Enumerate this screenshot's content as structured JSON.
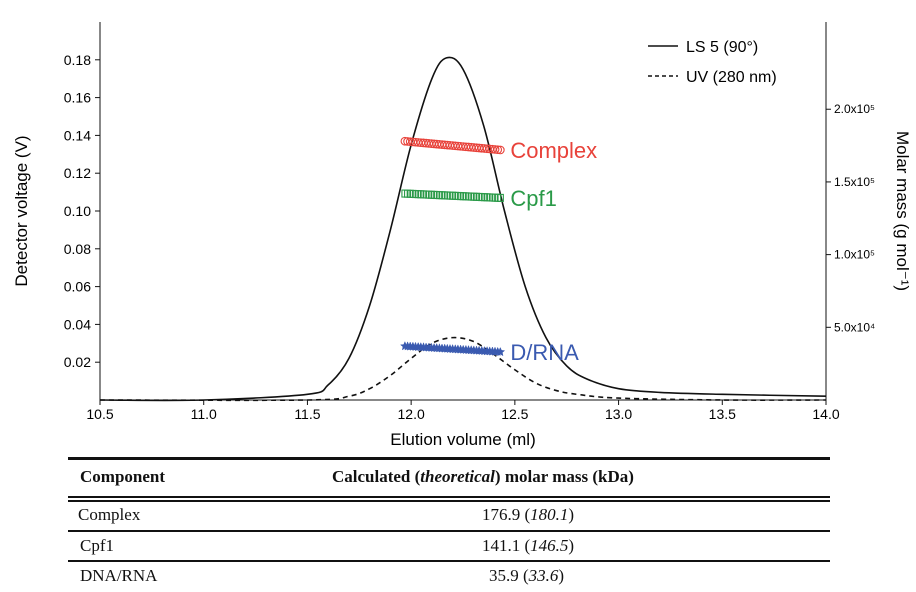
{
  "chart_data": {
    "type": "line",
    "xlabel": "Elution volume (ml)",
    "ylabel": "Detector voltage (V)",
    "y2label": "Molar mass (g mol⁻¹)",
    "xlim": [
      10.5,
      14.0
    ],
    "ylim": [
      0,
      0.2
    ],
    "y2lim": [
      0,
      260000
    ],
    "xticks": [
      "10.5",
      "11.0",
      "11.5",
      "12.0",
      "12.5",
      "13.0",
      "13.5",
      "14.0"
    ],
    "yticks": [
      "0.02",
      "0.04",
      "0.06",
      "0.08",
      "0.10",
      "0.12",
      "0.14",
      "0.16",
      "0.18"
    ],
    "y2ticks": [
      "5.0x10⁴",
      "1.0x10⁵",
      "1.5x10⁵",
      "2.0x10⁵"
    ],
    "legend": {
      "position": "top-right",
      "entries": [
        "LS 5 (90°)",
        "UV (280 nm)"
      ]
    },
    "series": [
      {
        "name": "LS 5 (90°)",
        "style": "solid",
        "color": "#111111",
        "x": [
          10.5,
          11.0,
          11.5,
          11.6,
          11.7,
          11.8,
          11.9,
          12.0,
          12.1,
          12.17,
          12.25,
          12.35,
          12.45,
          12.55,
          12.65,
          12.75,
          12.85,
          13.0,
          13.2,
          13.5,
          14.0
        ],
        "y": [
          0.0,
          0.0,
          0.003,
          0.008,
          0.022,
          0.05,
          0.09,
          0.135,
          0.17,
          0.181,
          0.175,
          0.145,
          0.1,
          0.06,
          0.033,
          0.018,
          0.011,
          0.006,
          0.004,
          0.003,
          0.002
        ]
      },
      {
        "name": "UV (280 nm)",
        "style": "dashed",
        "color": "#111111",
        "x": [
          10.5,
          11.5,
          11.7,
          11.8,
          11.9,
          12.0,
          12.1,
          12.2,
          12.3,
          12.4,
          12.5,
          12.6,
          12.7,
          12.8,
          13.0,
          13.5,
          14.0
        ],
        "y": [
          0.0,
          0.0,
          0.002,
          0.006,
          0.013,
          0.022,
          0.03,
          0.033,
          0.031,
          0.024,
          0.016,
          0.009,
          0.005,
          0.003,
          0.001,
          0.0,
          0.0
        ]
      }
    ],
    "mass_series": [
      {
        "label": "Complex",
        "color": "#e8423a",
        "marker": "circle",
        "x": [
          11.97,
          12.43
        ],
        "y": [
          178000,
          172000
        ]
      },
      {
        "label": "Cpf1",
        "color": "#2a9a48",
        "marker": "square",
        "x": [
          11.97,
          12.43
        ],
        "y": [
          142000,
          139000
        ]
      },
      {
        "label": "D/RNA",
        "color": "#3a5ab0",
        "marker": "star",
        "x": [
          11.97,
          12.43
        ],
        "y": [
          37000,
          33000
        ]
      }
    ]
  },
  "table": {
    "header_component": "Component",
    "header_mass_pre": "Calculated (",
    "header_mass_italic": "theoretical",
    "header_mass_post": ") molar mass (kDa)",
    "rows": [
      {
        "component": "Complex",
        "calculated": "176.9",
        "theoretical": "180.1"
      },
      {
        "component": "Cpf1",
        "calculated": "141.1",
        "theoretical": "146.5"
      },
      {
        "component": "DNA/RNA",
        "calculated": "35.9",
        "theoretical": "33.6"
      }
    ]
  }
}
